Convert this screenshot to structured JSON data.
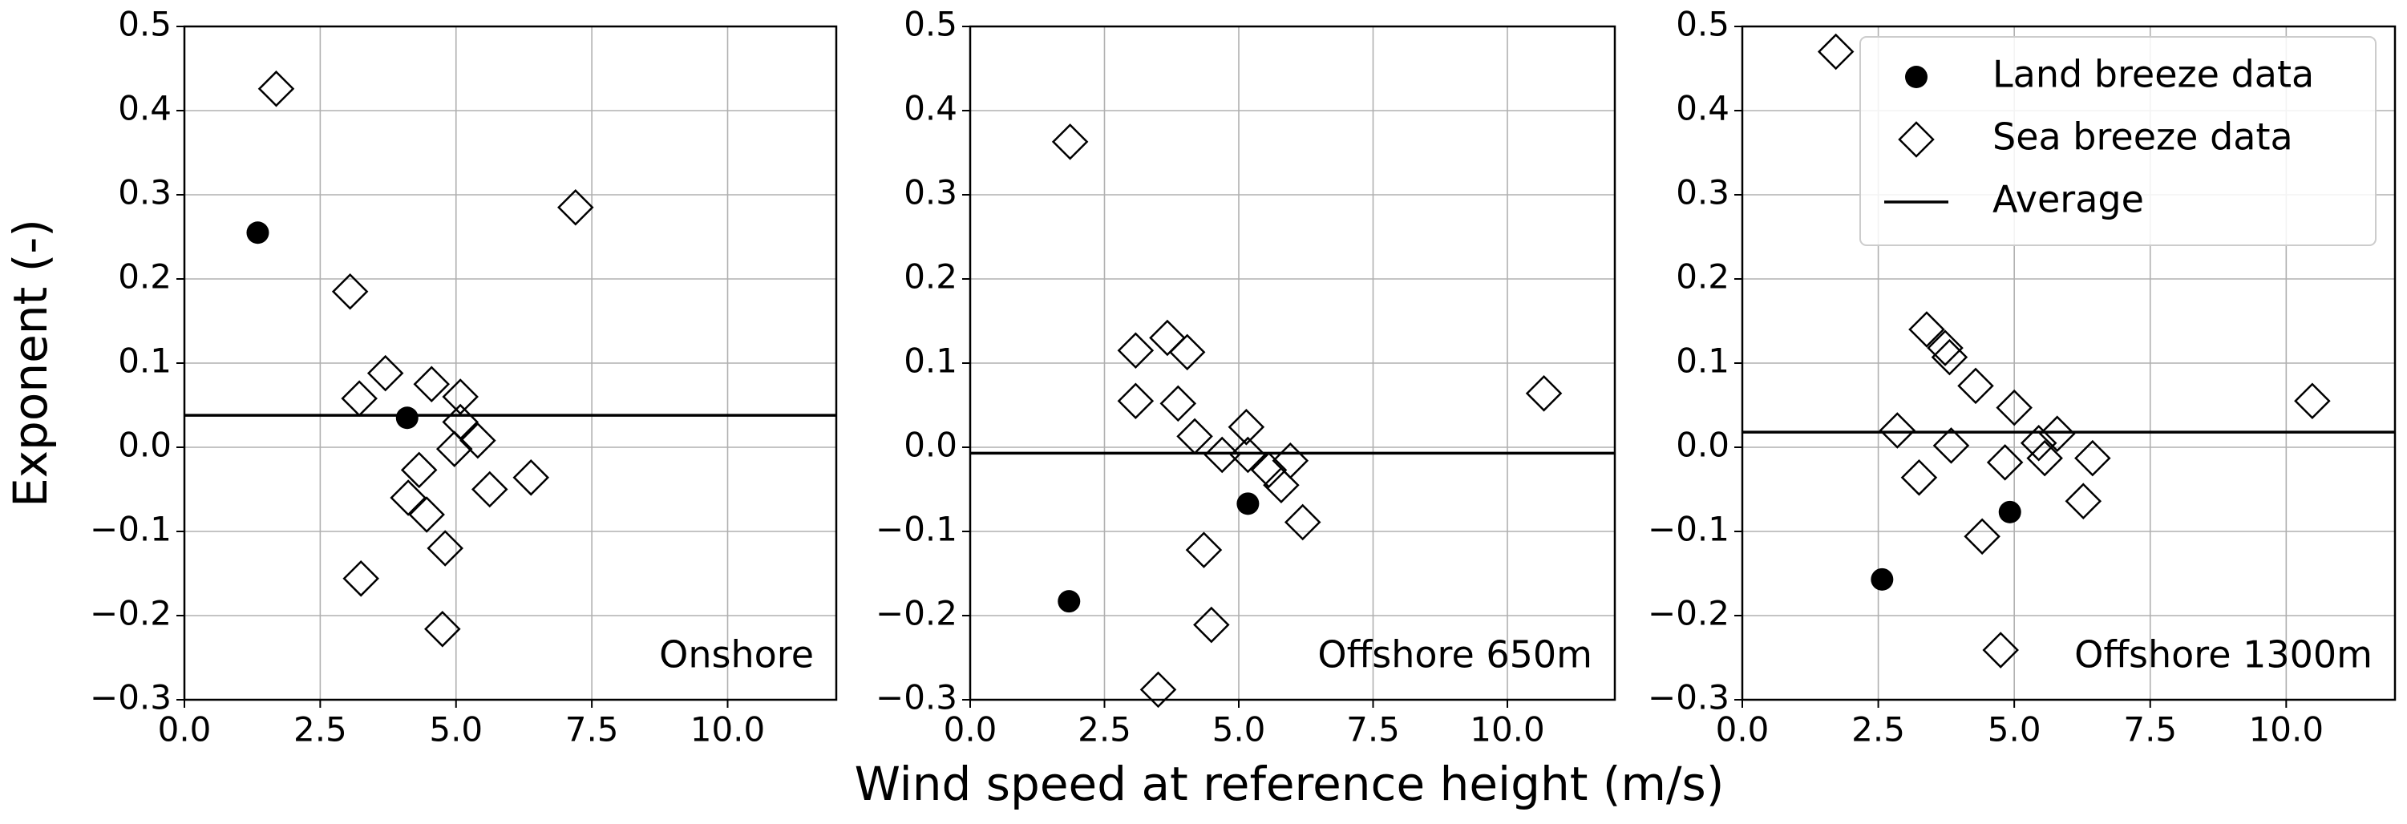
{
  "xlabel": "Wind speed at reference height (m/s)",
  "chart_data": [
    {
      "type": "scatter",
      "ylabel": "Exponent (-)",
      "annotation": "Onshore",
      "xlim": [
        0,
        12
      ],
      "ylim": [
        -0.3,
        0.5
      ],
      "grid": true,
      "xticks": [
        {
          "value": 0,
          "label": "0.0"
        },
        2.5,
        {
          "value": 5,
          "label": "5.0"
        },
        7.5,
        {
          "value": 10,
          "label": "10.0"
        }
      ],
      "yticks": [
        {
          "value": -0.3,
          "label": "−0.3"
        },
        {
          "value": -0.2,
          "label": "−0.2"
        },
        {
          "value": -0.1,
          "label": "−0.1"
        },
        {
          "value": 0,
          "label": "0.0"
        },
        0.1,
        0.2,
        0.3,
        0.4,
        0.5
      ],
      "series": [
        {
          "marker": "circle",
          "color": "#000000",
          "x": [
            1.35,
            4.1
          ],
          "values": [
            0.255,
            0.035
          ]
        },
        {
          "marker": "diamond",
          "color": "#000000",
          "x": [
            1.69,
            3.05,
            3.22,
            3.7,
            4.55,
            5.08,
            5.08,
            4.97,
            5.4,
            4.32,
            4.12,
            4.46,
            4.8,
            5.62,
            6.38,
            7.2,
            3.25,
            4.75
          ],
          "values": [
            0.426,
            0.185,
            0.058,
            0.088,
            0.075,
            0.06,
            0.03,
            -0.002,
            0.008,
            -0.027,
            -0.06,
            -0.08,
            -0.12,
            -0.05,
            -0.036,
            0.285,
            -0.156,
            -0.216
          ]
        },
        {
          "marker": "hline",
          "color": "#000000",
          "value": 0.038
        }
      ]
    },
    {
      "type": "scatter",
      "annotation": "Offshore 650m",
      "xlim": [
        0,
        12
      ],
      "ylim": [
        -0.3,
        0.5
      ],
      "grid": true,
      "xticks": [
        {
          "value": 0,
          "label": "0.0"
        },
        2.5,
        {
          "value": 5,
          "label": "5.0"
        },
        7.5,
        {
          "value": 10,
          "label": "10.0"
        }
      ],
      "yticks": [
        {
          "value": -0.3,
          "label": "−0.3"
        },
        {
          "value": -0.2,
          "label": "−0.2"
        },
        {
          "value": -0.1,
          "label": "−0.1"
        },
        {
          "value": 0,
          "label": "0.0"
        },
        0.1,
        0.2,
        0.3,
        0.4,
        0.5
      ],
      "series": [
        {
          "marker": "circle",
          "color": "#000000",
          "x": [
            1.84,
            5.17
          ],
          "values": [
            -0.183,
            -0.067
          ]
        },
        {
          "marker": "diamond",
          "color": "#000000",
          "x": [
            1.86,
            3.08,
            3.67,
            4.04,
            3.08,
            3.87,
            4.18,
            4.69,
            5.14,
            5.17,
            5.56,
            5.79,
            5.96,
            6.19,
            4.35,
            4.49,
            3.5,
            10.68
          ],
          "values": [
            0.363,
            0.115,
            0.13,
            0.113,
            0.055,
            0.052,
            0.013,
            -0.009,
            0.024,
            -0.009,
            -0.027,
            -0.045,
            -0.016,
            -0.089,
            -0.122,
            -0.211,
            -0.288,
            0.064
          ]
        },
        {
          "marker": "hline",
          "color": "#000000",
          "value": -0.007
        }
      ]
    },
    {
      "type": "scatter",
      "annotation": "Offshore 1300m",
      "legend": "upper right",
      "xlim": [
        0,
        12
      ],
      "ylim": [
        -0.3,
        0.5
      ],
      "grid": true,
      "xticks": [
        {
          "value": 0,
          "label": "0.0"
        },
        2.5,
        {
          "value": 5,
          "label": "5.0"
        },
        7.5,
        {
          "value": 10,
          "label": "10.0"
        }
      ],
      "yticks": [
        {
          "value": -0.3,
          "label": "−0.3"
        },
        {
          "value": -0.2,
          "label": "−0.2"
        },
        {
          "value": -0.1,
          "label": "−0.1"
        },
        {
          "value": 0,
          "label": "0.0"
        },
        0.1,
        0.2,
        0.3,
        0.4,
        0.5
      ],
      "series": [
        {
          "name": "Land breeze data",
          "marker": "circle",
          "color": "#000000",
          "x": [
            2.57,
            4.92
          ],
          "values": [
            -0.157,
            -0.077
          ]
        },
        {
          "name": "Sea breeze data",
          "marker": "diamond",
          "color": "#000000",
          "x": [
            1.72,
            2.85,
            3.25,
            3.39,
            3.73,
            3.81,
            3.84,
            4.29,
            4.41,
            4.83,
            5.0,
            5.45,
            5.56,
            5.79,
            6.44,
            6.27,
            4.75,
            10.48
          ],
          "values": [
            0.47,
            0.02,
            -0.036,
            0.14,
            0.118,
            0.107,
            0.002,
            0.073,
            -0.106,
            -0.018,
            0.047,
            0.005,
            -0.013,
            0.016,
            -0.013,
            -0.064,
            -0.241,
            0.055
          ]
        },
        {
          "name": "Average",
          "marker": "hline",
          "color": "#000000",
          "value": 0.018
        }
      ]
    }
  ]
}
